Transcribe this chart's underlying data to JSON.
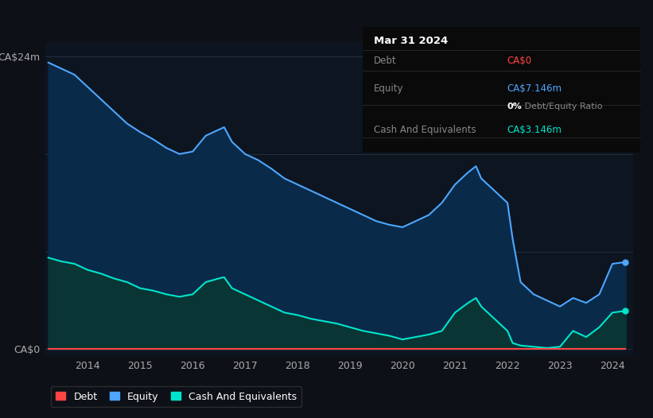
{
  "background_color": "#0d1117",
  "plot_bg_color": "#0d1520",
  "y_max": 24,
  "x_ticks": [
    2014,
    2015,
    2016,
    2017,
    2018,
    2019,
    2020,
    2021,
    2022,
    2023,
    2024
  ],
  "equity_color": "#4da6ff",
  "equity_fill": "#0a2a4a",
  "cash_color": "#00e5cc",
  "cash_fill": "#0a3535",
  "debt_color": "#ff4444",
  "legend": [
    {
      "label": "Debt",
      "color": "#ff4444"
    },
    {
      "label": "Equity",
      "color": "#4da6ff"
    },
    {
      "label": "Cash And Equivalents",
      "color": "#00e5cc"
    }
  ],
  "equity_data": {
    "years": [
      2013.25,
      2013.5,
      2013.75,
      2014.0,
      2014.25,
      2014.5,
      2014.75,
      2015.0,
      2015.25,
      2015.5,
      2015.75,
      2016.0,
      2016.25,
      2016.5,
      2016.6,
      2016.75,
      2017.0,
      2017.25,
      2017.5,
      2017.75,
      2018.0,
      2018.25,
      2018.5,
      2018.75,
      2019.0,
      2019.25,
      2019.5,
      2019.75,
      2020.0,
      2020.25,
      2020.5,
      2020.75,
      2021.0,
      2021.25,
      2021.4,
      2021.5,
      2021.75,
      2022.0,
      2022.1,
      2022.25,
      2022.5,
      2022.75,
      2023.0,
      2023.25,
      2023.5,
      2023.75,
      2024.0,
      2024.25
    ],
    "values": [
      23.5,
      23.0,
      22.5,
      21.5,
      20.5,
      19.5,
      18.5,
      17.8,
      17.2,
      16.5,
      16.0,
      16.2,
      17.5,
      18.0,
      18.2,
      17.0,
      16.0,
      15.5,
      14.8,
      14.0,
      13.5,
      13.0,
      12.5,
      12.0,
      11.5,
      11.0,
      10.5,
      10.2,
      10.0,
      10.5,
      11.0,
      12.0,
      13.5,
      14.5,
      15.0,
      14.0,
      13.0,
      12.0,
      9.0,
      5.5,
      4.5,
      4.0,
      3.5,
      4.2,
      3.8,
      4.5,
      7.0,
      7.146
    ]
  },
  "cash_data": {
    "years": [
      2013.25,
      2013.5,
      2013.75,
      2014.0,
      2014.25,
      2014.5,
      2014.75,
      2015.0,
      2015.25,
      2015.5,
      2015.75,
      2016.0,
      2016.25,
      2016.5,
      2016.6,
      2016.75,
      2017.0,
      2017.25,
      2017.5,
      2017.75,
      2018.0,
      2018.25,
      2018.5,
      2018.75,
      2019.0,
      2019.25,
      2019.5,
      2019.75,
      2020.0,
      2020.25,
      2020.5,
      2020.75,
      2021.0,
      2021.25,
      2021.4,
      2021.5,
      2021.75,
      2022.0,
      2022.1,
      2022.25,
      2022.5,
      2022.75,
      2023.0,
      2023.25,
      2023.5,
      2023.75,
      2024.0,
      2024.25
    ],
    "values": [
      7.5,
      7.2,
      7.0,
      6.5,
      6.2,
      5.8,
      5.5,
      5.0,
      4.8,
      4.5,
      4.3,
      4.5,
      5.5,
      5.8,
      5.9,
      5.0,
      4.5,
      4.0,
      3.5,
      3.0,
      2.8,
      2.5,
      2.3,
      2.1,
      1.8,
      1.5,
      1.3,
      1.1,
      0.8,
      1.0,
      1.2,
      1.5,
      3.0,
      3.8,
      4.2,
      3.5,
      2.5,
      1.5,
      0.5,
      0.3,
      0.2,
      0.1,
      0.2,
      1.5,
      1.0,
      1.8,
      3.0,
      3.146
    ]
  },
  "debt_data": {
    "years": [
      2013.25,
      2024.25
    ],
    "values": [
      0.0,
      0.0
    ]
  },
  "tooltip": {
    "date": "Mar 31 2024",
    "debt_label": "Debt",
    "debt_value": "CA$0",
    "debt_color": "#ff4444",
    "equity_label": "Equity",
    "equity_value": "CA$7.146m",
    "equity_color": "#4da6ff",
    "ratio_bold": "0%",
    "ratio_rest": " Debt/Equity Ratio",
    "cash_label": "Cash And Equivalents",
    "cash_value": "CA$3.146m",
    "cash_color": "#00e5cc",
    "bg_color": "#0a0a0a",
    "sep_color": "#2a2a2a",
    "label_color": "#888888",
    "title_color": "#ffffff"
  }
}
